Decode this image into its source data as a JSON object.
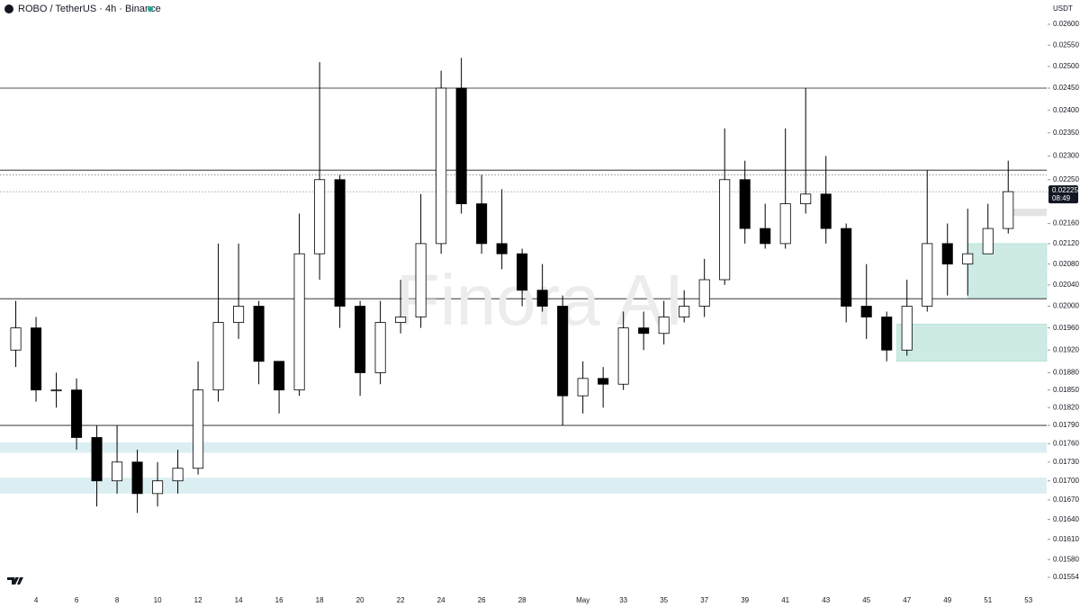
{
  "chart_data": {
    "type": "candlestick",
    "title": "ROBO / TetherUS · 4h · Binance",
    "y_axis_unit": "USDT",
    "watermark": "Finora AI",
    "log_scale": true,
    "colors": {
      "up": "#ffffff",
      "down": "#000000",
      "outline": "#000000",
      "zone": "#dbeff3",
      "box": "#cdebe4",
      "grey_box": "#e3e3e3"
    },
    "x": [
      3,
      4,
      5,
      6,
      7,
      8,
      9,
      10,
      11,
      12,
      13,
      14,
      15,
      16,
      17,
      18,
      19,
      20,
      21,
      22,
      23,
      24,
      25,
      26,
      27,
      28,
      29,
      30,
      31,
      32,
      33,
      34,
      35,
      36,
      37,
      38,
      39,
      40,
      41,
      42,
      43,
      44,
      45,
      46,
      47,
      48,
      49,
      50,
      51,
      52
    ],
    "open": [
      0.0192,
      0.0196,
      0.0185,
      0.0185,
      0.0177,
      0.017,
      0.0173,
      0.0168,
      0.017,
      0.0172,
      0.0185,
      0.0197,
      0.02,
      0.019,
      0.0185,
      0.021,
      0.0225,
      0.02,
      0.0188,
      0.0197,
      0.0198,
      0.0212,
      0.0245,
      0.022,
      0.0212,
      0.021,
      0.0203,
      0.02,
      0.0184,
      0.0187,
      0.0186,
      0.0196,
      0.0195,
      0.0198,
      0.02,
      0.0205,
      0.0225,
      0.0215,
      0.0212,
      0.022,
      0.0222,
      0.0215,
      0.02,
      0.0198,
      0.0192,
      0.02,
      0.0212,
      0.0208,
      0.021,
      0.0215
    ],
    "high": [
      0.0201,
      0.0198,
      0.0188,
      0.0187,
      0.0179,
      0.0179,
      0.0175,
      0.0173,
      0.0175,
      0.019,
      0.0212,
      0.0212,
      0.0201,
      0.019,
      0.0218,
      0.0251,
      0.0226,
      0.0201,
      0.0201,
      0.0205,
      0.0222,
      0.0249,
      0.0252,
      0.0226,
      0.0223,
      0.0211,
      0.0208,
      0.0202,
      0.019,
      0.0189,
      0.0199,
      0.0199,
      0.0201,
      0.0203,
      0.0209,
      0.0236,
      0.0229,
      0.022,
      0.0236,
      0.0245,
      0.023,
      0.0216,
      0.0208,
      0.0199,
      0.0205,
      0.0227,
      0.0216,
      0.0219,
      0.022,
      0.0229
    ],
    "low": [
      0.0189,
      0.0183,
      0.0182,
      0.0175,
      0.0166,
      0.0168,
      0.0165,
      0.0166,
      0.0168,
      0.0171,
      0.0183,
      0.0194,
      0.0186,
      0.0181,
      0.0184,
      0.0205,
      0.0196,
      0.0184,
      0.0186,
      0.0195,
      0.0196,
      0.021,
      0.0218,
      0.021,
      0.0207,
      0.02,
      0.0199,
      0.0179,
      0.0181,
      0.0182,
      0.0185,
      0.0192,
      0.0193,
      0.0197,
      0.0198,
      0.0204,
      0.0212,
      0.0211,
      0.0211,
      0.0218,
      0.0212,
      0.0197,
      0.0194,
      0.019,
      0.0191,
      0.0199,
      0.0202,
      0.0202,
      0.021,
      0.0214
    ],
    "close": [
      0.0196,
      0.0185,
      0.0185,
      0.0177,
      0.017,
      0.0173,
      0.0168,
      0.017,
      0.0172,
      0.0185,
      0.0197,
      0.02,
      0.019,
      0.0185,
      0.021,
      0.0225,
      0.02,
      0.0188,
      0.0197,
      0.0198,
      0.0212,
      0.0245,
      0.022,
      0.0212,
      0.021,
      0.0203,
      0.02,
      0.0184,
      0.0187,
      0.0186,
      0.0196,
      0.0195,
      0.0198,
      0.02,
      0.0205,
      0.0225,
      0.0215,
      0.0212,
      0.022,
      0.0222,
      0.0215,
      0.02,
      0.0198,
      0.0192,
      0.02,
      0.0212,
      0.0208,
      0.021,
      0.0215,
      0.02225
    ],
    "levels": [
      0.0245,
      0.0227,
      0.02014,
      0.0179
    ],
    "dotted_levels": [
      0.0226,
      0.02225
    ],
    "zones": [
      [
        0.01762,
        0.01745
      ],
      [
        0.01705,
        0.0168
      ]
    ],
    "boxes": [
      {
        "x": [
          50.0,
          53.9
        ],
        "y": [
          0.0212,
          0.02014
        ]
      },
      {
        "x": [
          46.5,
          53.9
        ],
        "y": [
          0.01967,
          0.019
        ]
      }
    ],
    "grey_box": {
      "x": [
        51.9,
        53.9
      ],
      "y": [
        0.0219,
        0.02175
      ]
    },
    "price_tag": {
      "value": 0.02225,
      "label": "0.02225",
      "countdown": "08:49"
    },
    "xlim": [
      2.22,
      53.9
    ],
    "ylim": [
      0.015308,
      0.026594
    ],
    "xticks": [
      4,
      6,
      8,
      10,
      12,
      14,
      16,
      18,
      20,
      22,
      24,
      26,
      28,
      {
        "value": 31,
        "label": "May"
      },
      33,
      35,
      37,
      39,
      41,
      43,
      45,
      47,
      49,
      51,
      53
    ],
    "xtick_labels_shown": [
      {
        "value": 4,
        "label": "4"
      },
      {
        "value": 6,
        "label": "6"
      }
    ],
    "yticks": [
      {
        "value": 0.026,
        "label": "0.02600"
      },
      {
        "value": 0.0255,
        "label": "0.02550"
      },
      {
        "value": 0.025,
        "label": "0.02500"
      },
      {
        "value": 0.0245,
        "label": "0.02450"
      },
      {
        "value": 0.024,
        "label": "0.02400"
      },
      {
        "value": 0.0235,
        "label": "0.02350"
      },
      {
        "value": 0.023,
        "label": "0.02300"
      },
      {
        "value": 0.0225,
        "label": "0.02250"
      },
      {
        "value": 0.0216,
        "label": "0.02160"
      },
      {
        "value": 0.0212,
        "label": "0.02120"
      },
      {
        "value": 0.0208,
        "label": "0.02080"
      },
      {
        "value": 0.0204,
        "label": "0.02040"
      },
      {
        "value": 0.02,
        "label": "0.02000"
      },
      {
        "value": 0.0196,
        "label": "0.01960"
      },
      {
        "value": 0.0192,
        "label": "0.01920"
      },
      {
        "value": 0.0188,
        "label": "0.01880"
      },
      {
        "value": 0.0185,
        "label": "0.01850"
      },
      {
        "value": 0.0182,
        "label": "0.01820"
      },
      {
        "value": 0.0179,
        "label": "0.01790"
      },
      {
        "value": 0.0176,
        "label": "0.01760"
      },
      {
        "value": 0.0173,
        "label": "0.01730"
      },
      {
        "value": 0.017,
        "label": "0.01700"
      },
      {
        "value": 0.0167,
        "label": "0.01670"
      },
      {
        "value": 0.0164,
        "label": "0.01640"
      },
      {
        "value": 0.0161,
        "label": "0.01610"
      },
      {
        "value": 0.0158,
        "label": "0.01580"
      },
      {
        "value": 0.01554,
        "label": "0.01554"
      }
    ]
  }
}
